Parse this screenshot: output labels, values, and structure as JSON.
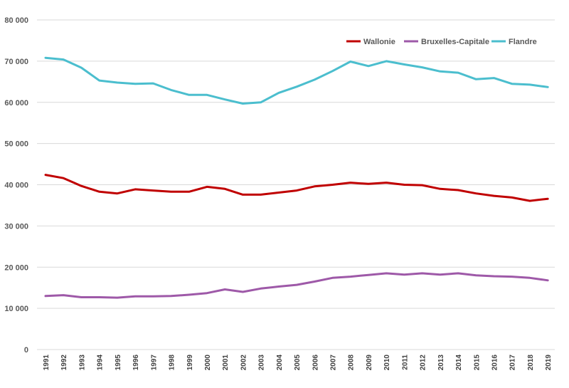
{
  "chart_data": {
    "type": "line",
    "title": "",
    "xlabel": "",
    "ylabel": "",
    "ylim": [
      0,
      80000
    ],
    "yticks": [
      0,
      10000,
      20000,
      30000,
      40000,
      50000,
      60000,
      70000,
      80000
    ],
    "ytick_labels": [
      "0",
      "10 000",
      "20 000",
      "30 000",
      "40 000",
      "50 000",
      "60 000",
      "70 000",
      "80 000"
    ],
    "grid": true,
    "legend_position": "top-right",
    "x": [
      "1991",
      "1992",
      "1993",
      "1994",
      "1995",
      "1996",
      "1997",
      "1998",
      "1999",
      "2000",
      "2001",
      "2002",
      "2003",
      "2004",
      "2005",
      "2006",
      "2007",
      "2008",
      "2009",
      "2010",
      "2011",
      "2012",
      "2013",
      "2014",
      "2015",
      "2016",
      "2017",
      "2018",
      "2019"
    ],
    "series": [
      {
        "name": "Wallonie",
        "color": "#c00000",
        "values": [
          42400,
          41600,
          39700,
          38300,
          37900,
          38900,
          38600,
          38300,
          38300,
          39500,
          39000,
          37600,
          37600,
          38100,
          38600,
          39600,
          40000,
          40500,
          40200,
          40500,
          40000,
          39900,
          39000,
          38700,
          37900,
          37300,
          36900,
          36100,
          36600
        ]
      },
      {
        "name": "Bruxelles-Capitale",
        "color": "#9e59a8",
        "values": [
          13000,
          13200,
          12700,
          12700,
          12600,
          12900,
          12900,
          13000,
          13300,
          13700,
          14600,
          14000,
          14800,
          15300,
          15700,
          16500,
          17400,
          17700,
          18100,
          18500,
          18200,
          18500,
          18200,
          18500,
          18000,
          17800,
          17700,
          17400,
          16800
        ]
      },
      {
        "name": "Flandre",
        "color": "#4bbece",
        "values": [
          70800,
          70400,
          68400,
          65300,
          64800,
          64500,
          64600,
          63000,
          61800,
          61800,
          60700,
          59700,
          60000,
          62300,
          63800,
          65500,
          67600,
          69900,
          68800,
          70000,
          69200,
          68500,
          67500,
          67200,
          65600,
          65900,
          64500,
          64300,
          63700
        ]
      }
    ]
  }
}
